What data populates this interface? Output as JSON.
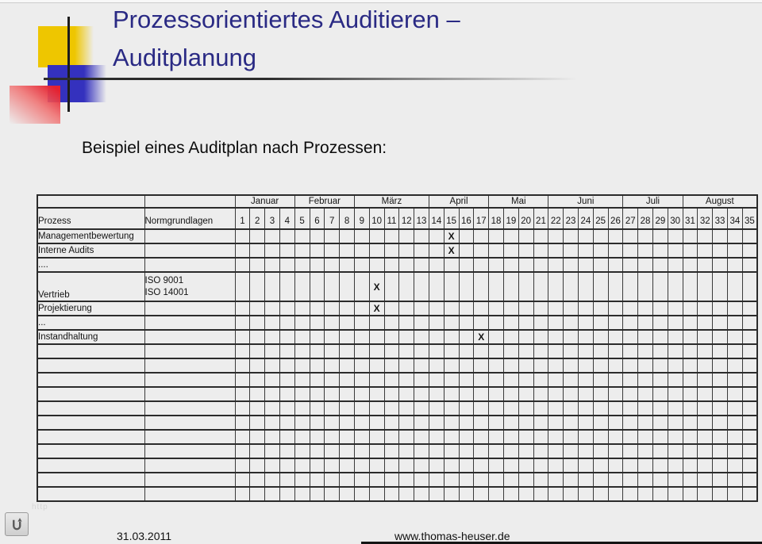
{
  "slide": {
    "title_line1": "Prozessorientiertes Auditieren –",
    "title_line2": "Auditplanung",
    "subtitle": "Beispiel eines Auditplan nach Prozessen:",
    "watermark": "http",
    "footer_date": "31.03.2011",
    "footer_url": "www.thomas-heuser.de"
  },
  "colors": {
    "title_navy": "#2a2a84",
    "logo_yellow": "#eec600",
    "logo_blue": "#3431be",
    "logo_red": "#e42130",
    "grid_line": "#2b2b2b",
    "background": "#ededed"
  },
  "icons": {
    "back_button": "u-turn-arrow-icon"
  },
  "table": {
    "col1_header": "Prozess",
    "col2_header": "Normgrundlagen",
    "months": [
      {
        "name": "Januar",
        "weeks": 4
      },
      {
        "name": "Februar",
        "weeks": 4
      },
      {
        "name": "März",
        "weeks": 5
      },
      {
        "name": "April",
        "weeks": 4
      },
      {
        "name": "Mai",
        "weeks": 4
      },
      {
        "name": "Juni",
        "weeks": 5
      },
      {
        "name": "Juli",
        "weeks": 4
      },
      {
        "name": "August",
        "weeks": 5
      }
    ],
    "week_numbers": [
      1,
      2,
      3,
      4,
      5,
      6,
      7,
      8,
      9,
      10,
      11,
      12,
      13,
      14,
      15,
      16,
      17,
      18,
      19,
      20,
      21,
      22,
      23,
      24,
      25,
      26,
      27,
      28,
      29,
      30,
      31,
      32,
      33,
      34,
      35
    ],
    "mark_symbol": "X",
    "rows": [
      {
        "prozess": "Managementbewertung",
        "norm": [],
        "marks": [
          15
        ],
        "tall": false
      },
      {
        "prozess": "Interne Audits",
        "norm": [],
        "marks": [
          15
        ],
        "tall": false
      },
      {
        "prozess": "....",
        "norm": [],
        "marks": [],
        "tall": false
      },
      {
        "prozess": "Vertrieb",
        "norm": [
          "ISO 9001",
          "ISO 14001"
        ],
        "marks": [
          10
        ],
        "tall": true
      },
      {
        "prozess": "Projektierung",
        "norm": [],
        "marks": [
          10
        ],
        "tall": false
      },
      {
        "prozess": "...",
        "norm": [],
        "marks": [],
        "tall": false
      },
      {
        "prozess": "Instandhaltung",
        "norm": [],
        "marks": [
          17
        ],
        "tall": false
      }
    ],
    "empty_row_count": 11
  }
}
